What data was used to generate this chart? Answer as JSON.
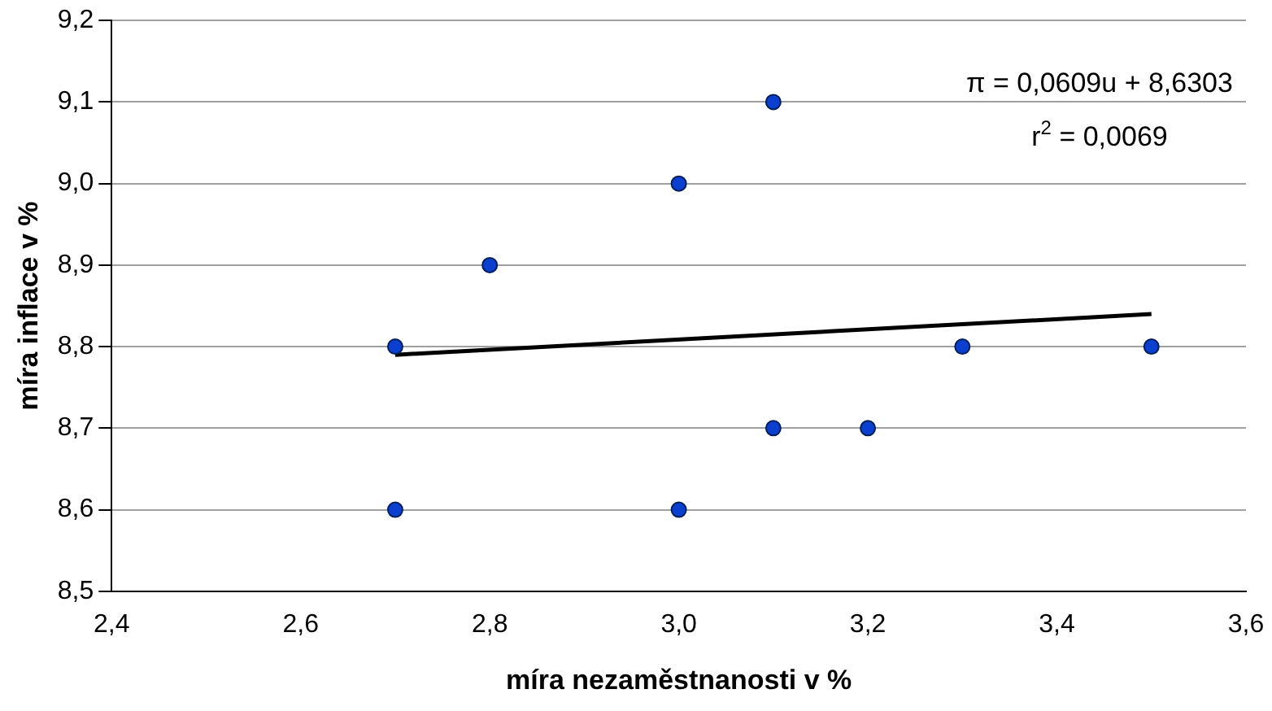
{
  "chart_data": {
    "type": "scatter",
    "xlabel": "míra nezaměstnanosti v %",
    "ylabel": "míra inflace v %",
    "series": [
      {
        "color": "#0a3fd0",
        "marker": "circle",
        "x": [
          2.7,
          2.7,
          2.8,
          3.0,
          3.0,
          3.1,
          3.1,
          3.2,
          3.3,
          3.5
        ],
        "values": [
          8.8,
          8.6,
          8.9,
          9.0,
          8.6,
          9.1,
          8.7,
          8.7,
          8.8,
          8.8
        ]
      },
      {
        "type": "line",
        "color": "#000000",
        "marker": "none",
        "x": [
          2.7,
          3.5
        ],
        "values": [
          8.79,
          8.84
        ]
      }
    ],
    "annotations": [
      "π = 0,0609u + 8,6303",
      "r$^{2}$ = 0,0069"
    ],
    "xlim": [
      2.4,
      3.6
    ],
    "xticks": [
      {
        "value": 2.4,
        "label": "2,4"
      },
      {
        "value": 2.6,
        "label": "2,6"
      },
      {
        "value": 2.8,
        "label": "2,8"
      },
      {
        "value": 3.0,
        "label": "3,0"
      },
      {
        "value": 3.2,
        "label": "3,2"
      },
      {
        "value": 3.4,
        "label": "3,4"
      },
      {
        "value": 3.6,
        "label": "3,6"
      }
    ],
    "ylim": [
      8.5,
      9.2
    ],
    "yticks": [
      {
        "value": 8.5,
        "label": "8,5"
      },
      {
        "value": 8.6,
        "label": "8,6"
      },
      {
        "value": 8.7,
        "label": "8,7"
      },
      {
        "value": 8.8,
        "label": "8,8"
      },
      {
        "value": 8.9,
        "label": "8,9"
      },
      {
        "value": 9.0,
        "label": "9,0"
      },
      {
        "value": 9.1,
        "label": "9,1"
      },
      {
        "value": 9.2,
        "label": "9,2"
      }
    ],
    "grid": "y",
    "legend": false
  }
}
